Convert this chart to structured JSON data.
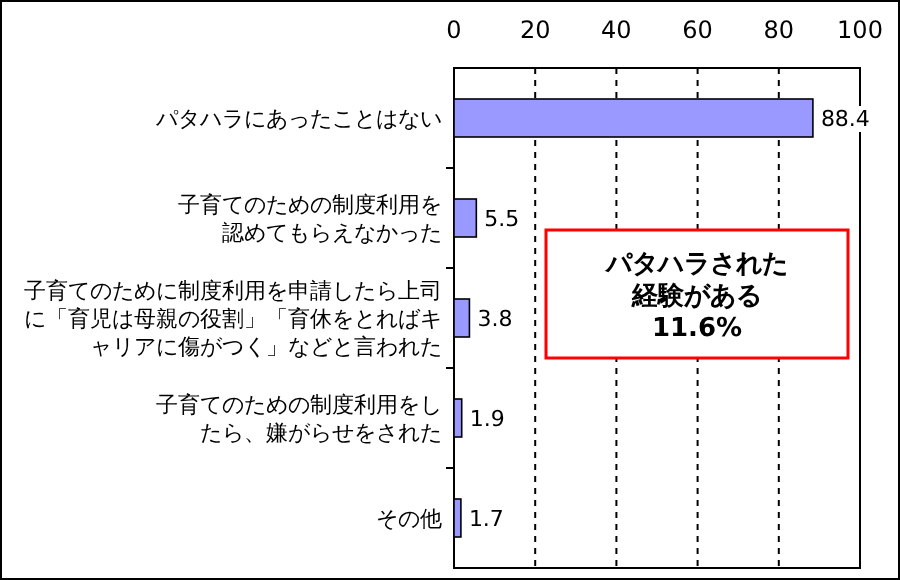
{
  "chart_data": {
    "type": "bar",
    "orientation": "horizontal",
    "categories": [
      "パタハラにあったことはない",
      "子育てのための制度利用を認めてもらえなかった",
      "子育てのために制度利用を申請したら上司に「育児は母親の役割」「育休をとればキャリアに傷がつく」などと言われた",
      "子育てのための制度利用をしたら、嫌がらせをされた",
      "その他"
    ],
    "values": [
      88.4,
      5.5,
      3.8,
      1.9,
      1.7
    ],
    "color": "#9999ff",
    "xlim": [
      0,
      100
    ],
    "xticks": [
      0,
      20,
      40,
      60,
      80,
      100
    ],
    "grid": "x",
    "data_labels": true,
    "annotations": [
      "パタハラされた経験がある11.6%"
    ]
  }
}
